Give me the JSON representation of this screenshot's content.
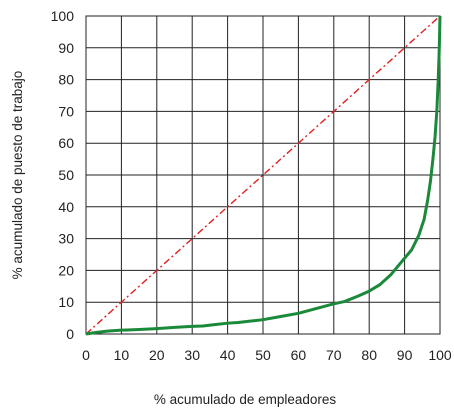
{
  "chart_data": {
    "type": "line",
    "title": "",
    "xlabel": "% acumulado de empleadores",
    "ylabel": "% acumulado de puesto de trabajo",
    "xlim": [
      0,
      100
    ],
    "ylim": [
      0,
      100
    ],
    "x_ticks": [
      "0",
      "10",
      "20",
      "30",
      "40",
      "50",
      "60",
      "70",
      "80",
      "90",
      "100"
    ],
    "y_ticks": [
      "0",
      "10",
      "20",
      "30",
      "40",
      "50",
      "60",
      "70",
      "80",
      "90",
      "100"
    ],
    "grid": true,
    "legend": "none",
    "series": [
      {
        "color": "#1a8a3a",
        "style": "solid",
        "points": [
          [
            0,
            0
          ],
          [
            3,
            0.5
          ],
          [
            6,
            0.9
          ],
          [
            10,
            1.2
          ],
          [
            15,
            1.4
          ],
          [
            20,
            1.7
          ],
          [
            25,
            2.1
          ],
          [
            30,
            2.4
          ],
          [
            33,
            2.5
          ],
          [
            36,
            2.9
          ],
          [
            40,
            3.4
          ],
          [
            43,
            3.6
          ],
          [
            46,
            4.0
          ],
          [
            50,
            4.5
          ],
          [
            55,
            5.5
          ],
          [
            60,
            6.5
          ],
          [
            65,
            8.0
          ],
          [
            70,
            9.5
          ],
          [
            73,
            10.2
          ],
          [
            77,
            12.0
          ],
          [
            80,
            13.5
          ],
          [
            83,
            15.5
          ],
          [
            86,
            18.5
          ],
          [
            89,
            22.5
          ],
          [
            92,
            26.5
          ],
          [
            94,
            31.0
          ],
          [
            95.5,
            36.0
          ],
          [
            96.5,
            42.0
          ],
          [
            97.3,
            48.0
          ],
          [
            98,
            55.0
          ],
          [
            98.6,
            62.0
          ],
          [
            99.1,
            70.0
          ],
          [
            99.5,
            80.0
          ],
          [
            99.8,
            90.0
          ],
          [
            100,
            100
          ]
        ]
      },
      {
        "color": "#e02020",
        "style": "dash-dot",
        "points": [
          [
            0,
            0
          ],
          [
            100,
            100
          ]
        ]
      }
    ]
  }
}
